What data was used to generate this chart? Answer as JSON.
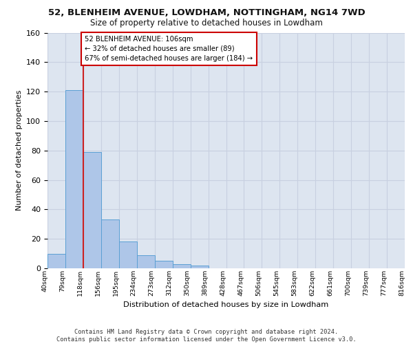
{
  "title1": "52, BLENHEIM AVENUE, LOWDHAM, NOTTINGHAM, NG14 7WD",
  "title2": "Size of property relative to detached houses in Lowdham",
  "xlabel": "Distribution of detached houses by size in Lowdham",
  "ylabel": "Number of detached properties",
  "bar_values": [
    10,
    121,
    79,
    33,
    18,
    9,
    5,
    3,
    2,
    0,
    0,
    0,
    0,
    0,
    0,
    0,
    0,
    0,
    0,
    0
  ],
  "bin_labels": [
    "40sqm",
    "79sqm",
    "118sqm",
    "156sqm",
    "195sqm",
    "234sqm",
    "273sqm",
    "312sqm",
    "350sqm",
    "389sqm",
    "428sqm",
    "467sqm",
    "506sqm",
    "545sqm",
    "583sqm",
    "622sqm",
    "661sqm",
    "700sqm",
    "739sqm",
    "777sqm",
    "816sqm"
  ],
  "bar_color": "#aec6e8",
  "bar_edge_color": "#5a9fd4",
  "vline_color": "#cc2222",
  "annotation_text": "52 BLENHEIM AVENUE: 106sqm\n← 32% of detached houses are smaller (89)\n67% of semi-detached houses are larger (184) →",
  "annotation_box_color": "#ffffff",
  "annotation_box_edge_color": "#cc0000",
  "ylim": [
    0,
    160
  ],
  "yticks": [
    0,
    20,
    40,
    60,
    80,
    100,
    120,
    140,
    160
  ],
  "grid_color": "#c8d0e0",
  "background_color": "#dde5f0",
  "footer": "Contains HM Land Registry data © Crown copyright and database right 2024.\nContains public sector information licensed under the Open Government Licence v3.0."
}
